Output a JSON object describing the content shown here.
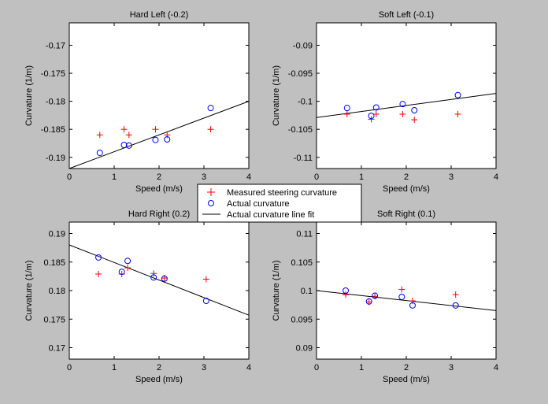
{
  "figure": {
    "background": "#c0c0c0"
  },
  "legend": {
    "entries": [
      {
        "label": "Measured steering curvature",
        "marker": "plus",
        "color": "#ff0000"
      },
      {
        "label": "Actual curvature",
        "marker": "circle",
        "color": "#0000ff"
      },
      {
        "label": "Actual curvature line fit",
        "marker": "line",
        "color": "#000000"
      }
    ]
  },
  "chart_data": [
    {
      "type": "scatter",
      "title": "Hard Left (-0.2)",
      "xlabel": "Speed (m/s)",
      "ylabel": "Curvature (1/m)",
      "xlim": [
        0,
        4
      ],
      "ylim": [
        -0.192,
        -0.166
      ],
      "xticks": [
        "0",
        "1",
        "2",
        "3",
        "4"
      ],
      "yticks": [
        "-0.17",
        "-0.175",
        "-0.18",
        "-0.185",
        "-0.19"
      ],
      "ytick_values": [
        -0.17,
        -0.175,
        -0.18,
        -0.185,
        -0.19
      ],
      "measured": {
        "x": [
          0.68,
          1.22,
          1.33,
          1.92,
          2.18,
          3.15
        ],
        "y": [
          -0.186,
          -0.185,
          -0.186,
          -0.185,
          -0.186,
          -0.185
        ]
      },
      "actual": {
        "x": [
          0.68,
          1.22,
          1.33,
          1.92,
          2.18,
          3.15
        ],
        "y": [
          -0.1892,
          -0.1878,
          -0.1879,
          -0.1869,
          -0.1868,
          -0.1812
        ]
      },
      "fit": {
        "x": [
          0,
          4
        ],
        "y": [
          -0.192,
          -0.18
        ]
      }
    },
    {
      "type": "scatter",
      "title": "Soft Left (-0.1)",
      "xlabel": "Speed (m/s)",
      "ylabel": "Curvature (1/m)",
      "xlim": [
        0,
        4
      ],
      "ylim": [
        -0.112,
        -0.086
      ],
      "xticks": [
        "0",
        "1",
        "2",
        "3",
        "4"
      ],
      "yticks": [
        "-0.09",
        "-0.095",
        "-0.1",
        "-0.105",
        "-0.11"
      ],
      "ytick_values": [
        -0.09,
        -0.095,
        -0.1,
        -0.105,
        -0.11
      ],
      "measured": {
        "x": [
          0.68,
          1.22,
          1.33,
          1.92,
          2.18,
          3.15
        ],
        "y": [
          -0.1023,
          -0.1032,
          -0.1023,
          -0.1023,
          -0.1033,
          -0.1023
        ]
      },
      "actual": {
        "x": [
          0.68,
          1.22,
          1.33,
          1.92,
          2.18,
          3.15
        ],
        "y": [
          -0.1012,
          -0.1026,
          -0.1011,
          -0.1005,
          -0.1016,
          -0.0989
        ]
      },
      "fit": {
        "x": [
          0,
          4
        ],
        "y": [
          -0.1029,
          -0.0986
        ]
      }
    },
    {
      "type": "scatter",
      "title": "Hard Right (0.2)",
      "xlabel": "Speed (m/s)",
      "ylabel": "Curvature (1/m)",
      "xlim": [
        0,
        4
      ],
      "ylim": [
        0.168,
        0.192
      ],
      "xticks": [
        "0",
        "1",
        "2",
        "3",
        "4"
      ],
      "yticks": [
        "0.19",
        "0.185",
        "0.18",
        "0.175",
        "0.17"
      ],
      "ytick_values": [
        0.19,
        0.185,
        0.18,
        0.175,
        0.17
      ],
      "measured": {
        "x": [
          0.65,
          1.17,
          1.3,
          1.88,
          2.12,
          3.05
        ],
        "y": [
          0.1829,
          0.1829,
          0.184,
          0.183,
          0.1822,
          0.182
        ]
      },
      "actual": {
        "x": [
          0.65,
          1.17,
          1.3,
          1.88,
          2.12,
          3.05
        ],
        "y": [
          0.1858,
          0.1833,
          0.1852,
          0.1823,
          0.1821,
          0.1782
        ]
      },
      "fit": {
        "x": [
          0,
          4
        ],
        "y": [
          0.188,
          0.1757
        ]
      }
    },
    {
      "type": "scatter",
      "title": "Soft Right (0.1)",
      "xlabel": "Speed (m/s)",
      "ylabel": "Curvature (1/m)",
      "xlim": [
        0,
        4
      ],
      "ylim": [
        0.088,
        0.112
      ],
      "xticks": [
        "0",
        "1",
        "2",
        "3",
        "4"
      ],
      "yticks": [
        "0.11",
        "0.105",
        "0.1",
        "0.095",
        "0.09"
      ],
      "ytick_values": [
        0.11,
        0.105,
        0.1,
        0.095,
        0.09
      ],
      "measured": {
        "x": [
          0.65,
          1.17,
          1.3,
          1.9,
          2.14,
          3.1
        ],
        "y": [
          0.0993,
          0.098,
          0.099,
          0.1002,
          0.0982,
          0.0993
        ]
      },
      "actual": {
        "x": [
          0.65,
          1.17,
          1.3,
          1.9,
          2.14,
          3.1
        ],
        "y": [
          0.1,
          0.0981,
          0.0991,
          0.0989,
          0.0974,
          0.0974
        ]
      },
      "fit": {
        "x": [
          0,
          4
        ],
        "y": [
          0.1,
          0.0965
        ]
      }
    }
  ]
}
